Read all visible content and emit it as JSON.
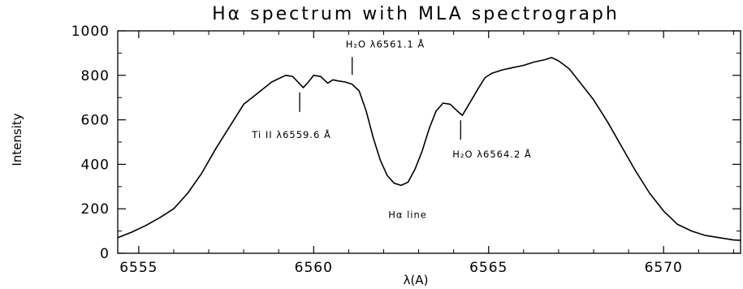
{
  "chart_data": {
    "type": "line",
    "title": "Hα spectrum with MLA spectrograph",
    "xlabel": "λ(A)",
    "ylabel": "Intensity",
    "xlim": [
      6554.4,
      6572.2
    ],
    "ylim": [
      0,
      1000
    ],
    "xticks": [
      6555,
      6560,
      6565,
      6570
    ],
    "yticks": [
      0,
      200,
      400,
      600,
      800,
      1000
    ],
    "grid": false,
    "legend": "none",
    "series": [
      {
        "x": [
          6554.4,
          6554.8,
          6555.2,
          6555.6,
          6556.0,
          6556.4,
          6556.8,
          6557.2,
          6557.6,
          6558.0,
          6558.4,
          6558.8,
          6559.0,
          6559.2,
          6559.4,
          6559.55,
          6559.7,
          6559.85,
          6560.0,
          6560.2,
          6560.4,
          6560.55,
          6560.7,
          6560.9,
          6561.1,
          6561.3,
          6561.5,
          6561.7,
          6561.9,
          6562.1,
          6562.3,
          6562.5,
          6562.7,
          6562.9,
          6563.1,
          6563.3,
          6563.5,
          6563.7,
          6563.9,
          6564.1,
          6564.25,
          6564.4,
          6564.55,
          6564.7,
          6564.9,
          6565.1,
          6565.4,
          6565.7,
          6566.0,
          6566.3,
          6566.6,
          6566.8,
          6567.0,
          6567.3,
          6567.6,
          6568.0,
          6568.4,
          6568.8,
          6569.2,
          6569.6,
          6570.0,
          6570.4,
          6570.8,
          6571.2,
          6571.6,
          6572.0,
          6572.2
        ],
        "y": [
          70,
          95,
          125,
          160,
          200,
          270,
          360,
          470,
          570,
          670,
          720,
          770,
          785,
          800,
          795,
          770,
          745,
          770,
          800,
          795,
          765,
          780,
          775,
          770,
          760,
          730,
          640,
          520,
          420,
          350,
          315,
          305,
          320,
          380,
          460,
          560,
          640,
          675,
          670,
          640,
          620,
          660,
          700,
          740,
          790,
          810,
          825,
          835,
          845,
          860,
          870,
          880,
          865,
          830,
          770,
          690,
          590,
          480,
          370,
          270,
          190,
          130,
          100,
          80,
          70,
          60,
          58
        ]
      }
    ],
    "annotations": [
      {
        "text": "H₂O λ6561.1 Å",
        "x": 6561.1,
        "y": 780
      },
      {
        "text": "Ti II λ6559.6 Å",
        "x": 6559.6,
        "y": 745
      },
      {
        "text": "H₂O λ6564.2 Å",
        "x": 6564.2,
        "y": 620
      },
      {
        "text": "Hα line",
        "x": 6562.5,
        "y": 305
      }
    ]
  }
}
